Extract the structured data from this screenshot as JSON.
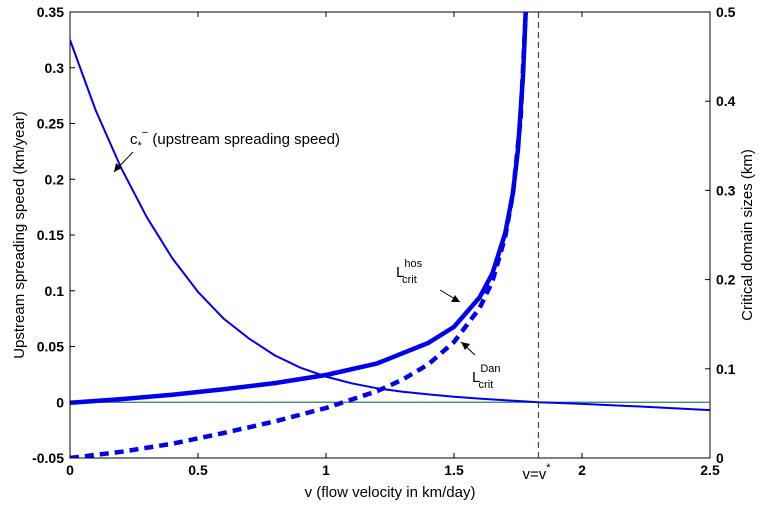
{
  "chart_data": {
    "type": "line",
    "title": "",
    "xlabel": "v (flow velocity in km/day)",
    "ylabel_left": "Upstream spreading speed (km/year)",
    "ylabel_right": "Critical domain sizes (km)",
    "xlim": [
      0,
      2.5
    ],
    "ylim_left": [
      -0.05,
      0.35
    ],
    "ylim_right": [
      0,
      0.5
    ],
    "x_ticks": [
      "0",
      "0.5",
      "1",
      "1.5",
      "2",
      "2.5"
    ],
    "y_ticks_left": [
      "-0.05",
      "0",
      "0.05",
      "0.1",
      "0.15",
      "0.2",
      "0.25",
      "0.3",
      "0.35"
    ],
    "y_ticks_right": [
      "0",
      "0.1",
      "0.2",
      "0.3",
      "0.4",
      "0.5"
    ],
    "vstar_label": "v=v*",
    "vstar_value": 1.83,
    "grid": false,
    "series": [
      {
        "name": "c*− (upstream spreading speed)",
        "axis": "left",
        "style": "thin",
        "color": "#0000ee",
        "x": [
          0,
          0.1,
          0.2,
          0.3,
          0.4,
          0.5,
          0.6,
          0.7,
          0.8,
          0.9,
          1.0,
          1.1,
          1.2,
          1.3,
          1.4,
          1.5,
          1.6,
          1.7,
          1.83,
          2.0,
          2.2,
          2.5
        ],
        "y": [
          0.325,
          0.262,
          0.21,
          0.166,
          0.129,
          0.099,
          0.075,
          0.057,
          0.042,
          0.031,
          0.023,
          0.017,
          0.0125,
          0.0095,
          0.007,
          0.005,
          0.0033,
          0.0018,
          0.0,
          -0.0015,
          -0.0035,
          -0.007
        ]
      },
      {
        "name": "L_crit^hos",
        "label_main": "L",
        "label_sup": "hos",
        "label_sub": "crit",
        "axis": "right",
        "style": "thick",
        "color": "#0000ee",
        "x": [
          0,
          0.2,
          0.4,
          0.6,
          0.8,
          1.0,
          1.2,
          1.4,
          1.5,
          1.6,
          1.65,
          1.7,
          1.73,
          1.75,
          1.77,
          1.78
        ],
        "y": [
          0.062,
          0.066,
          0.071,
          0.077,
          0.084,
          0.093,
          0.106,
          0.129,
          0.147,
          0.18,
          0.207,
          0.252,
          0.297,
          0.346,
          0.43,
          0.5
        ]
      },
      {
        "name": "L_crit^Dan",
        "label_main": "L",
        "label_sup": "Dan",
        "label_sub": "crit",
        "axis": "right",
        "style": "dashed",
        "color": "#0000ee",
        "x": [
          0,
          0.2,
          0.4,
          0.6,
          0.8,
          1.0,
          1.2,
          1.3,
          1.4,
          1.5,
          1.6,
          1.65,
          1.7,
          1.73,
          1.76,
          1.78
        ],
        "y": [
          0.0,
          0.007,
          0.016,
          0.028,
          0.041,
          0.056,
          0.075,
          0.088,
          0.105,
          0.13,
          0.168,
          0.198,
          0.248,
          0.296,
          0.38,
          0.5
        ]
      }
    ],
    "reference_lines": [
      {
        "orientation": "horizontal",
        "axis": "left",
        "value": 0,
        "color": "#2e7d6b"
      },
      {
        "orientation": "vertical",
        "value": 1.83,
        "style": "dashed",
        "color": "#1f5c2e"
      }
    ]
  }
}
